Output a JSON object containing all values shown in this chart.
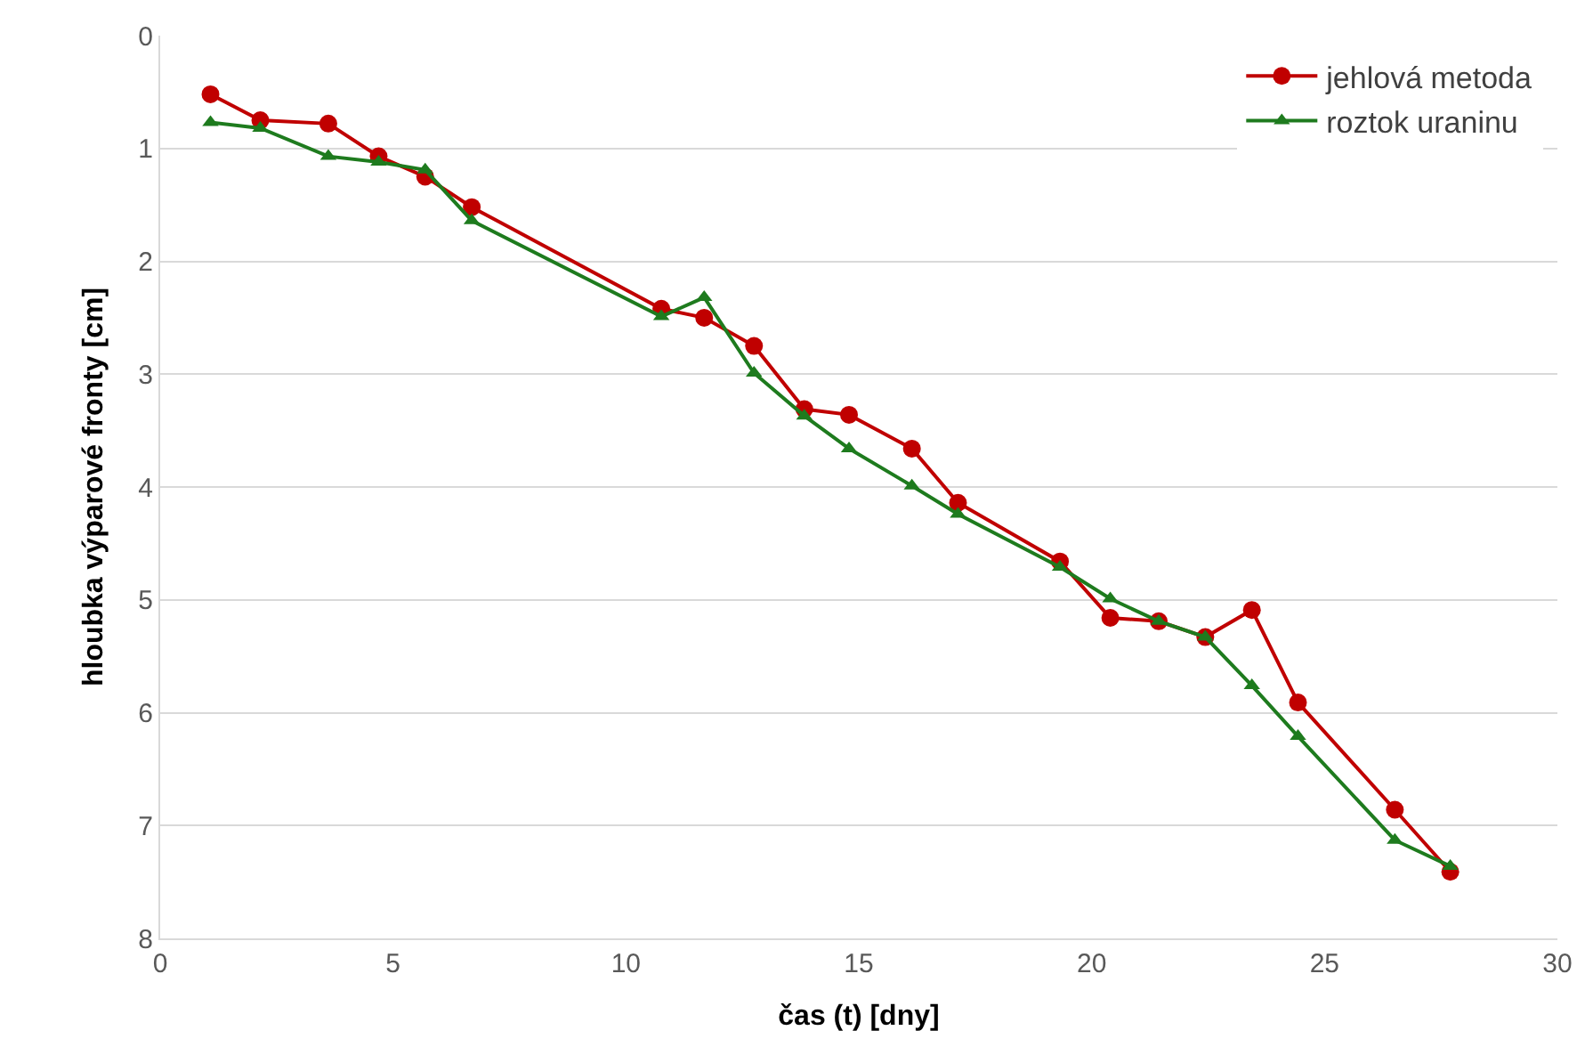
{
  "chart_data": {
    "type": "line",
    "xlabel": "čas (t) [dny]",
    "ylabel": "hloubka výparové fronty [cm]",
    "xlim": [
      0,
      30
    ],
    "xticks": [
      0,
      5,
      10,
      15,
      20,
      25,
      30
    ],
    "ylim": [
      8,
      0
    ],
    "yticks": [
      0,
      1,
      2,
      3,
      4,
      5,
      6,
      7,
      8
    ],
    "grid": "y",
    "legend": "top right",
    "line_style": "solid",
    "x": [
      1.08,
      2.15,
      3.61,
      4.69,
      5.69,
      6.69,
      10.76,
      11.68,
      12.75,
      13.83,
      14.79,
      16.14,
      17.13,
      19.32,
      20.4,
      21.44,
      22.44,
      23.44,
      24.43,
      26.51,
      27.7
    ],
    "series": [
      {
        "name": "jehlová metoda",
        "color": "#c00000",
        "marker": "circle",
        "values": [
          0.52,
          0.75,
          0.78,
          1.07,
          1.25,
          1.52,
          2.42,
          2.5,
          2.75,
          3.31,
          3.36,
          3.66,
          4.14,
          4.66,
          5.16,
          5.19,
          5.33,
          5.09,
          5.91,
          6.86,
          7.41
        ]
      },
      {
        "name": "roztok uraninu",
        "color": "#1e7b1e",
        "marker": "triangle",
        "values": [
          0.77,
          0.82,
          1.07,
          1.12,
          1.19,
          1.64,
          2.49,
          2.32,
          2.99,
          3.37,
          3.66,
          3.99,
          4.24,
          4.71,
          4.99,
          5.19,
          5.33,
          5.76,
          6.21,
          7.13,
          7.36
        ]
      }
    ]
  }
}
